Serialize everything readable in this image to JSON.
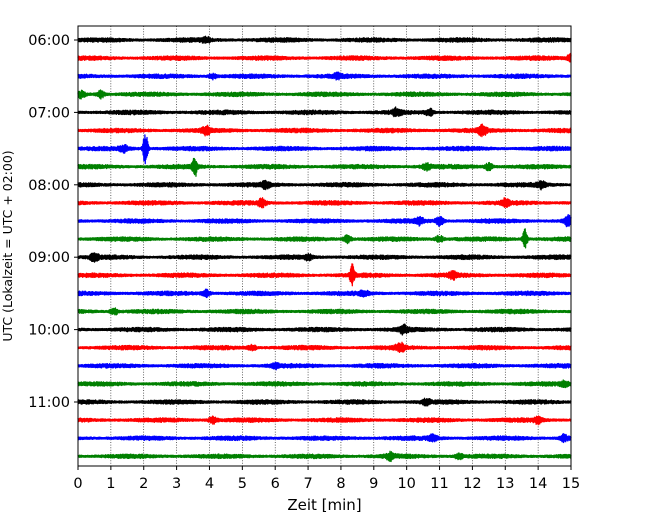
{
  "chart_data": {
    "type": "line",
    "title": "",
    "xlabel": "Zeit  [min]",
    "ylabel": "UTC (Lokalzeit = UTC + 02:00)",
    "xlim": [
      0,
      15
    ],
    "x_ticks": [
      0,
      1,
      2,
      3,
      4,
      5,
      6,
      7,
      8,
      9,
      10,
      11,
      12,
      13,
      14,
      15
    ],
    "x_tick_labels": [
      "0",
      "1",
      "2",
      "3",
      "4",
      "5",
      "6",
      "7",
      "8",
      "9",
      "10",
      "11",
      "12",
      "13",
      "14",
      "15"
    ],
    "y_tick_labels": [
      "06:00",
      "07:00",
      "08:00",
      "09:00",
      "10:00",
      "11:00"
    ],
    "grid": "vertical dotted",
    "legend": "none",
    "trace_interval_minutes": 15,
    "trace_colors": [
      "#000000",
      "#ff0000",
      "#0000ff",
      "#008000"
    ],
    "series": [
      {
        "start": "06:00",
        "events": [
          {
            "t": 3.9,
            "amp": 0.25
          }
        ]
      },
      {
        "start": "06:15",
        "events": [
          {
            "t": 15.0,
            "amp": 0.35
          }
        ]
      },
      {
        "start": "06:30",
        "events": [
          {
            "t": 4.1,
            "amp": 0.25
          },
          {
            "t": 7.9,
            "amp": 0.2
          }
        ]
      },
      {
        "start": "06:45",
        "events": [
          {
            "t": 0.7,
            "amp": 0.35
          },
          {
            "t": 0.1,
            "amp": 0.3
          }
        ]
      },
      {
        "start": "07:00",
        "events": [
          {
            "t": 9.7,
            "amp": 0.35
          },
          {
            "t": 10.7,
            "amp": 0.3
          }
        ]
      },
      {
        "start": "07:15",
        "events": [
          {
            "t": 3.9,
            "amp": 0.35
          },
          {
            "t": 12.3,
            "amp": 0.45
          }
        ]
      },
      {
        "start": "07:30",
        "events": [
          {
            "t": 2.05,
            "amp": 1.6
          },
          {
            "t": 1.4,
            "amp": 0.35
          }
        ]
      },
      {
        "start": "07:45",
        "events": [
          {
            "t": 3.55,
            "amp": 1.0
          },
          {
            "t": 10.6,
            "amp": 0.3
          },
          {
            "t": 12.5,
            "amp": 0.35
          }
        ]
      },
      {
        "start": "08:00",
        "events": [
          {
            "t": 5.7,
            "amp": 0.3
          },
          {
            "t": 14.1,
            "amp": 0.3
          }
        ]
      },
      {
        "start": "08:15",
        "events": [
          {
            "t": 5.6,
            "amp": 0.35
          },
          {
            "t": 13.0,
            "amp": 0.3
          }
        ]
      },
      {
        "start": "08:30",
        "events": [
          {
            "t": 11.0,
            "amp": 0.4
          },
          {
            "t": 14.9,
            "amp": 0.45
          },
          {
            "t": 10.4,
            "amp": 0.3
          }
        ]
      },
      {
        "start": "08:45",
        "events": [
          {
            "t": 13.6,
            "amp": 0.9
          },
          {
            "t": 8.2,
            "amp": 0.35
          },
          {
            "t": 11.0,
            "amp": 0.3
          }
        ]
      },
      {
        "start": "09:00",
        "events": [
          {
            "t": 0.5,
            "amp": 0.35
          },
          {
            "t": 7.0,
            "amp": 0.25
          }
        ]
      },
      {
        "start": "09:15",
        "events": [
          {
            "t": 8.35,
            "amp": 1.0
          },
          {
            "t": 11.4,
            "amp": 0.3
          }
        ]
      },
      {
        "start": "09:30",
        "events": [
          {
            "t": 3.9,
            "amp": 0.3
          },
          {
            "t": 8.7,
            "amp": 0.25
          }
        ]
      },
      {
        "start": "09:45",
        "events": [
          {
            "t": 1.1,
            "amp": 0.3
          }
        ]
      },
      {
        "start": "10:00",
        "events": [
          {
            "t": 9.9,
            "amp": 0.35
          }
        ]
      },
      {
        "start": "10:15",
        "events": [
          {
            "t": 9.8,
            "amp": 0.4
          },
          {
            "t": 5.3,
            "amp": 0.25
          }
        ]
      },
      {
        "start": "10:30",
        "events": [
          {
            "t": 6.0,
            "amp": 0.2
          }
        ]
      },
      {
        "start": "10:45",
        "events": [
          {
            "t": 14.8,
            "amp": 0.2
          }
        ]
      },
      {
        "start": "11:00",
        "events": [
          {
            "t": 10.6,
            "amp": 0.25
          }
        ]
      },
      {
        "start": "11:15",
        "events": [
          {
            "t": 4.1,
            "amp": 0.35
          },
          {
            "t": 14.0,
            "amp": 0.3
          }
        ]
      },
      {
        "start": "11:30",
        "events": [
          {
            "t": 10.8,
            "amp": 0.3
          },
          {
            "t": 14.8,
            "amp": 0.35
          }
        ]
      },
      {
        "start": "11:45",
        "events": [
          {
            "t": 9.5,
            "amp": 0.3
          },
          {
            "t": 11.6,
            "amp": 0.25
          }
        ]
      }
    ]
  }
}
